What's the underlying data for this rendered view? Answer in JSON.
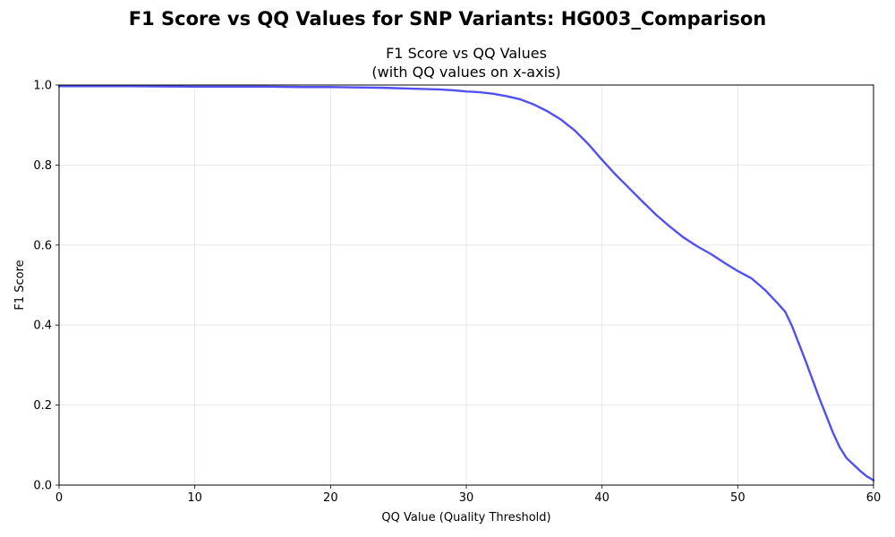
{
  "figure": {
    "suptitle": "F1 Score vs QQ Values for SNP Variants: HG003_Comparison"
  },
  "chart_data": {
    "type": "line",
    "title_line1": "F1 Score vs QQ Values",
    "title_line2": "(with QQ values on x-axis)",
    "xlabel": "QQ Value (Quality Threshold)",
    "ylabel": "F1 Score",
    "xlim": [
      0,
      60
    ],
    "ylim": [
      0,
      1.0
    ],
    "xticks": [
      0,
      10,
      20,
      30,
      40,
      50,
      60
    ],
    "yticks": [
      0.0,
      0.2,
      0.4,
      0.6,
      0.8,
      1.0
    ],
    "xtick_labels": [
      "0",
      "10",
      "20",
      "30",
      "40",
      "50",
      "60"
    ],
    "ytick_labels": [
      "0.0",
      "0.2",
      "0.4",
      "0.6",
      "0.8",
      "1.0"
    ],
    "grid": true,
    "series": [
      {
        "color": "#3333ee",
        "x": [
          0,
          5,
          10,
          15,
          18,
          20,
          22,
          24,
          26,
          28,
          29,
          30,
          31,
          32,
          33,
          34,
          35,
          36,
          37,
          38,
          39,
          40,
          41,
          42,
          43,
          44,
          45,
          46,
          47,
          48,
          49,
          50,
          51,
          52,
          53,
          53.5,
          54,
          55,
          56,
          57,
          57.5,
          58,
          59,
          59.5,
          60
        ],
        "y": [
          0.997,
          0.997,
          0.996,
          0.996,
          0.995,
          0.995,
          0.994,
          0.993,
          0.991,
          0.989,
          0.987,
          0.984,
          0.982,
          0.978,
          0.972,
          0.964,
          0.951,
          0.934,
          0.913,
          0.886,
          0.852,
          0.813,
          0.776,
          0.742,
          0.708,
          0.675,
          0.646,
          0.619,
          0.597,
          0.578,
          0.556,
          0.535,
          0.517,
          0.488,
          0.452,
          0.433,
          0.397,
          0.31,
          0.218,
          0.132,
          0.095,
          0.068,
          0.036,
          0.022,
          0.012
        ]
      }
    ]
  }
}
